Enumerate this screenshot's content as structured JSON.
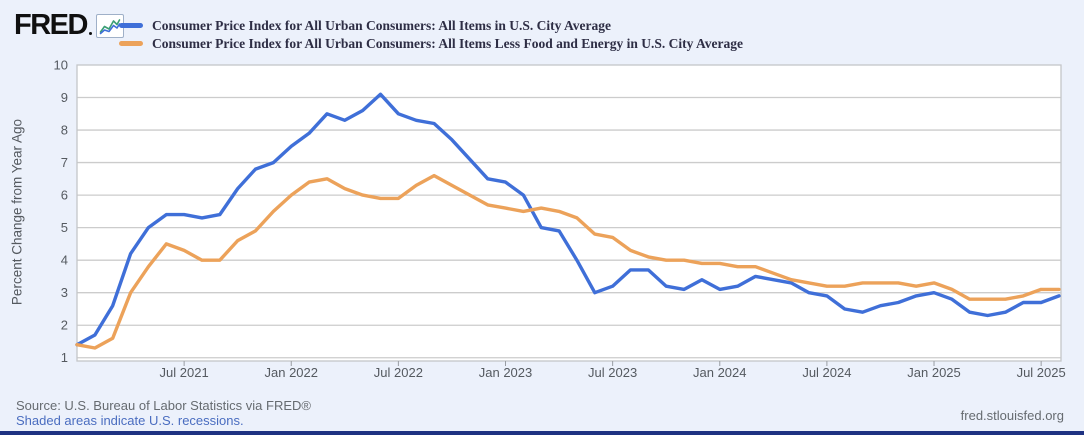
{
  "header": {
    "logo": "FRED"
  },
  "chart_data": {
    "type": "line",
    "title": "",
    "xlabel": "",
    "ylabel": "Percent Change from Year Ago",
    "ylim": [
      0.9,
      10
    ],
    "yticks": [
      1,
      2,
      3,
      4,
      5,
      6,
      7,
      8,
      9,
      10
    ],
    "x_start": "2021-01",
    "x_end": "2025-08",
    "frequency": "monthly",
    "xtick_labels": [
      "Jul 2021",
      "Jan 2022",
      "Jul 2022",
      "Jan 2023",
      "Jul 2023",
      "Jan 2024",
      "Jul 2024",
      "Jan 2025",
      "Jul 2025"
    ],
    "xtick_indices": [
      6,
      12,
      18,
      24,
      30,
      36,
      42,
      48,
      54
    ],
    "grid": "horizontal",
    "legend_position": "top-left",
    "plot_background": "#ffffff",
    "grid_color": "#cccccc",
    "series": [
      {
        "name": "Consumer Price Index for All Urban Consumers: All Items in U.S. City Average",
        "color": "#3f6fd8",
        "values": [
          1.4,
          1.7,
          2.6,
          4.2,
          5.0,
          5.4,
          5.4,
          5.3,
          5.4,
          6.2,
          6.8,
          7.0,
          7.5,
          7.9,
          8.5,
          8.3,
          8.6,
          9.1,
          8.5,
          8.3,
          8.2,
          7.7,
          7.1,
          6.5,
          6.4,
          6.0,
          5.0,
          4.9,
          4.0,
          3.0,
          3.2,
          3.7,
          3.7,
          3.2,
          3.1,
          3.4,
          3.1,
          3.2,
          3.5,
          3.4,
          3.3,
          3.0,
          2.9,
          2.5,
          2.4,
          2.6,
          2.7,
          2.9,
          3.0,
          2.8,
          2.4,
          2.3,
          2.4,
          2.7,
          2.7,
          2.9
        ]
      },
      {
        "name": "Consumer Price Index for All Urban Consumers: All Items Less Food and Energy in U.S. City Average",
        "color": "#eca25a",
        "values": [
          1.4,
          1.3,
          1.6,
          3.0,
          3.8,
          4.5,
          4.3,
          4.0,
          4.0,
          4.6,
          4.9,
          5.5,
          6.0,
          6.4,
          6.5,
          6.2,
          6.0,
          5.9,
          5.9,
          6.3,
          6.6,
          6.3,
          6.0,
          5.7,
          5.6,
          5.5,
          5.6,
          5.5,
          5.3,
          4.8,
          4.7,
          4.3,
          4.1,
          4.0,
          4.0,
          3.9,
          3.9,
          3.8,
          3.8,
          3.6,
          3.4,
          3.3,
          3.2,
          3.2,
          3.3,
          3.3,
          3.3,
          3.2,
          3.3,
          3.1,
          2.8,
          2.8,
          2.8,
          2.9,
          3.1,
          3.1
        ]
      }
    ]
  },
  "footer": {
    "source": "Source: U.S. Bureau of Labor Statistics via FRED®",
    "recession_note": "Shaded areas indicate U.S. recessions.",
    "site": "fred.stlouisfed.org"
  }
}
